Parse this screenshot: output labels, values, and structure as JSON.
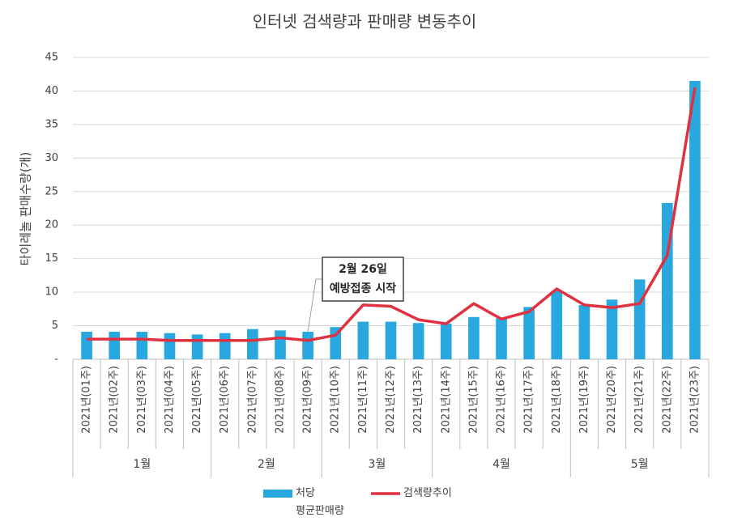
{
  "chart_data": {
    "type": "bar-line",
    "title": "인터넷 검색량과 판매량 변동추이",
    "y_label": "타이레놀 판매수량(개)",
    "categories": [
      "2021년(01주)",
      "2021년(02주)",
      "2021년(03주)",
      "2021년(04주)",
      "2021년(05주)",
      "2021년(06주)",
      "2021년(07주)",
      "2021년(08주)",
      "2021년(09주)",
      "2021년(10주)",
      "2021년(11주)",
      "2021년(12주)",
      "2021년(13주)",
      "2021년(14주)",
      "2021년(15주)",
      "2021년(16주)",
      "2021년(17주)",
      "2021년(18주)",
      "2021년(19주)",
      "2021년(20주)",
      "2021년(21주)",
      "2021년(22주)",
      "2021년(23주)"
    ],
    "groups": [
      "1월",
      "1월",
      "1월",
      "1월",
      "1월",
      "2월",
      "2월",
      "2월",
      "2월",
      "3월",
      "3월",
      "3월",
      "3월",
      "4월",
      "4월",
      "4월",
      "4월",
      "4월",
      "5월",
      "5월",
      "5월",
      "5월",
      "5월"
    ],
    "series": [
      {
        "name": "처당\n평균판매량",
        "type": "bar",
        "color": "#29a8e0",
        "values": [
          4.1,
          4.1,
          4.1,
          3.9,
          3.7,
          3.9,
          4.5,
          4.3,
          4.1,
          4.8,
          5.6,
          5.6,
          5.4,
          5.3,
          6.3,
          6.1,
          7.8,
          10.2,
          8.1,
          8.9,
          11.9,
          23.3,
          41.5
        ]
      },
      {
        "name": "검색량추이",
        "type": "line",
        "color": "#e03141",
        "values": [
          3,
          3,
          3,
          2.8,
          2.8,
          2.8,
          2.8,
          3.2,
          2.8,
          3.6,
          8.1,
          7.9,
          5.9,
          5.3,
          8.3,
          6,
          7.1,
          10.5,
          8.1,
          7.7,
          8.3,
          15.5,
          40.5
        ]
      }
    ],
    "annotation": {
      "lines": [
        "2월 26일",
        "예방접종 시작"
      ],
      "category": "2021년(09주)"
    },
    "ylim": [
      0,
      45
    ],
    "yticks": [
      {
        "value": 0,
        "label": "-"
      },
      5,
      10,
      15,
      20,
      25,
      30,
      35,
      40,
      45
    ],
    "grid": true
  }
}
